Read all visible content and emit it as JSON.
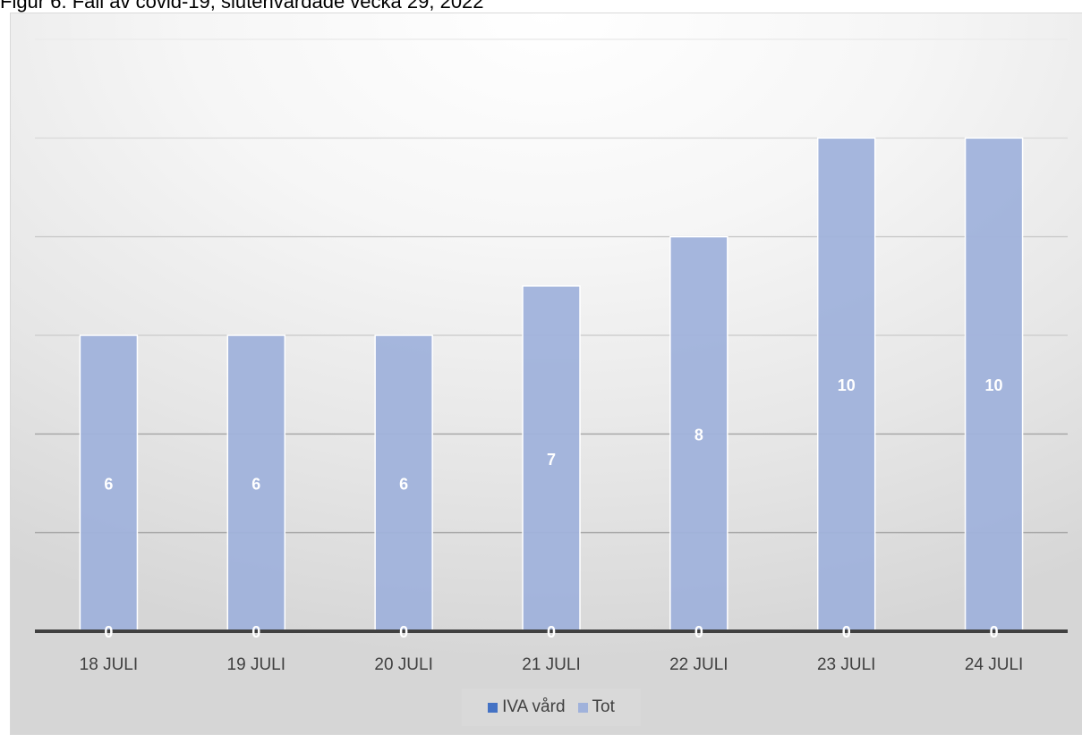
{
  "figure": {
    "title": "Figur 6. Fall av covid-19, slutenvårdade vecka 29, 2022"
  },
  "chart_data": {
    "type": "bar",
    "categories": [
      "18 JULI",
      "19 JULI",
      "20 JULI",
      "21 JULI",
      "22 JULI",
      "23 JULI",
      "24 JULI"
    ],
    "series": [
      {
        "name": "IVA vård",
        "values": [
          0,
          0,
          0,
          0,
          0,
          0,
          0
        ],
        "color": "#4472c4"
      },
      {
        "name": "Tot",
        "values": [
          6,
          6,
          6,
          7,
          8,
          10,
          10
        ],
        "color": "#a0b2db"
      }
    ],
    "ylim": [
      0,
      12
    ],
    "gridlines": [
      2,
      4,
      6,
      8,
      10,
      12
    ],
    "grid": true,
    "legend_position": "bottom",
    "y_axis_labels_shown": false
  }
}
